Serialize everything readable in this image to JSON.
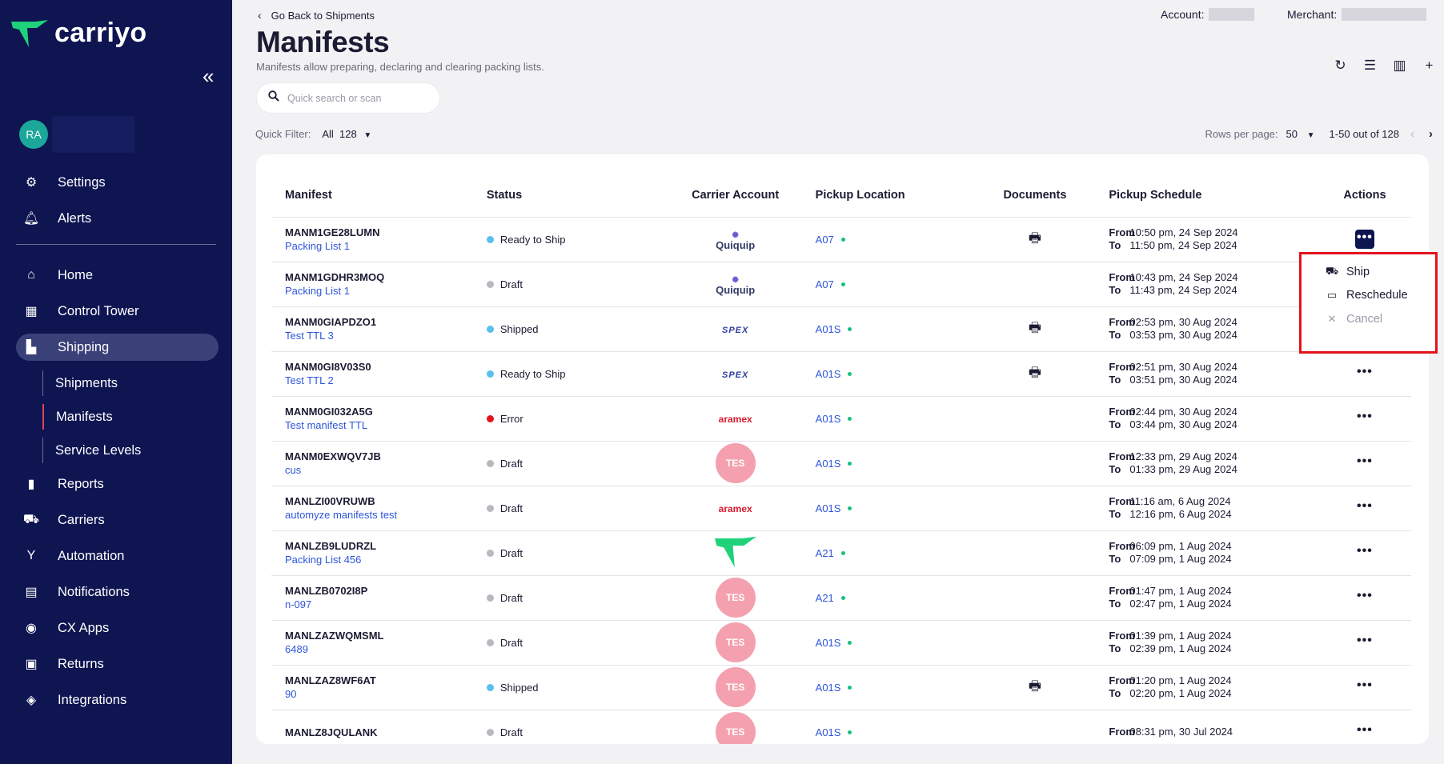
{
  "sidebar": {
    "logo_text": "carriyo",
    "avatar_initials": "RA",
    "main_items": [
      {
        "label": "Settings",
        "icon": "gear-icon"
      },
      {
        "label": "Alerts",
        "icon": "bell-icon"
      }
    ],
    "nav_items": [
      {
        "label": "Home",
        "icon": "home-icon"
      },
      {
        "label": "Control Tower",
        "icon": "dashboard-icon"
      },
      {
        "label": "Shipping",
        "icon": "boxes-icon"
      },
      {
        "label": "Reports",
        "icon": "bar-chart-icon"
      },
      {
        "label": "Carriers",
        "icon": "truck-icon"
      },
      {
        "label": "Automation",
        "icon": "fork-icon"
      },
      {
        "label": "Notifications",
        "icon": "chat-icon"
      },
      {
        "label": "CX Apps",
        "icon": "palette-icon"
      },
      {
        "label": "Returns",
        "icon": "return-box-icon"
      },
      {
        "label": "Integrations",
        "icon": "layers-icon"
      }
    ],
    "sub_items": [
      {
        "label": "Shipments"
      },
      {
        "label": "Manifests"
      },
      {
        "label": "Service Levels"
      }
    ],
    "active_nav": "Shipping",
    "active_sub": "Manifests"
  },
  "header": {
    "back_label": "Go Back to Shipments",
    "account_label": "Account:",
    "merchant_label": "Merchant:",
    "title": "Manifests",
    "description": "Manifests allow preparing, declaring and clearing packing lists."
  },
  "search": {
    "placeholder": "Quick search or scan"
  },
  "quick_filter": {
    "label": "Quick Filter:",
    "value": "All",
    "count": "128"
  },
  "pagination": {
    "rows_label": "Rows per page:",
    "rows_value": "50",
    "range": "1-50 out of 128"
  },
  "table": {
    "columns": [
      "Manifest",
      "Status",
      "Carrier Account",
      "Pickup Location",
      "Documents",
      "Pickup Schedule",
      "Actions"
    ],
    "from_label": "From",
    "to_label": "To",
    "rows": [
      {
        "id": "MANM1GE28LUMN",
        "list": "Packing List 1",
        "status": "Ready to Ship",
        "carrier": "Quiquip",
        "location": "A07",
        "doc": true,
        "from": "10:50 pm, 24 Sep 2024",
        "to": "11:50 pm, 24 Sep 2024"
      },
      {
        "id": "MANM1GDHR3MOQ",
        "list": "Packing List 1",
        "status": "Draft",
        "carrier": "Quiquip",
        "location": "A07",
        "doc": false,
        "from": "10:43 pm, 24 Sep 2024",
        "to": "11:43 pm, 24 Sep 2024"
      },
      {
        "id": "MANM0GIAPDZO1",
        "list": "Test TTL 3",
        "status": "Shipped",
        "carrier": "SPEX",
        "location": "A01S",
        "doc": true,
        "from": "02:53 pm, 30 Aug 2024",
        "to": "03:53 pm, 30 Aug 2024"
      },
      {
        "id": "MANM0GI8V03S0",
        "list": "Test TTL 2",
        "status": "Ready to Ship",
        "carrier": "SPEX",
        "location": "A01S",
        "doc": true,
        "from": "02:51 pm, 30 Aug 2024",
        "to": "03:51 pm, 30 Aug 2024"
      },
      {
        "id": "MANM0GI032A5G",
        "list": "Test manifest TTL",
        "status": "Error",
        "carrier": "aramex",
        "location": "A01S",
        "doc": false,
        "from": "02:44 pm, 30 Aug 2024",
        "to": "03:44 pm, 30 Aug 2024"
      },
      {
        "id": "MANM0EXWQV7JB",
        "list": "cus",
        "status": "Draft",
        "carrier": "TES",
        "location": "A01S",
        "doc": false,
        "from": "12:33 pm, 29 Aug 2024",
        "to": "01:33 pm, 29 Aug 2024"
      },
      {
        "id": "MANLZI00VRUWB",
        "list": "automyze manifests test",
        "status": "Draft",
        "carrier": "aramex",
        "location": "A01S",
        "doc": false,
        "from": "11:16 am, 6 Aug 2024",
        "to": "12:16 pm, 6 Aug 2024"
      },
      {
        "id": "MANLZB9LUDRZL",
        "list": "Packing List 456",
        "status": "Draft",
        "carrier": "carriyo",
        "location": "A21",
        "doc": false,
        "from": "06:09 pm, 1 Aug 2024",
        "to": "07:09 pm, 1 Aug 2024"
      },
      {
        "id": "MANLZB0702I8P",
        "list": "n-097",
        "status": "Draft",
        "carrier": "TES",
        "location": "A21",
        "doc": false,
        "from": "01:47 pm, 1 Aug 2024",
        "to": "02:47 pm, 1 Aug 2024"
      },
      {
        "id": "MANLZAZWQMSML",
        "list": "6489",
        "status": "Draft",
        "carrier": "TES",
        "location": "A01S",
        "doc": false,
        "from": "01:39 pm, 1 Aug 2024",
        "to": "02:39 pm, 1 Aug 2024"
      },
      {
        "id": "MANLZAZ8WF6AT",
        "list": "90",
        "status": "Shipped",
        "carrier": "TES",
        "location": "A01S",
        "doc": true,
        "from": "01:20 pm, 1 Aug 2024",
        "to": "02:20 pm, 1 Aug 2024"
      },
      {
        "id": "MANLZ8JQULANK",
        "list": "",
        "status": "Draft",
        "carrier": "TES",
        "location": "A01S",
        "doc": false,
        "from": "08:31 pm, 30 Jul 2024",
        "to": ""
      }
    ]
  },
  "action_menu": {
    "items": [
      {
        "label": "Ship",
        "icon": "truck-icon",
        "disabled": false
      },
      {
        "label": "Reschedule",
        "icon": "calendar-icon",
        "disabled": false
      },
      {
        "label": "Cancel",
        "icon": "close-icon",
        "disabled": true
      }
    ]
  },
  "colors": {
    "sidebar_bg": "#0e1551",
    "accent_blue": "#2e56d9",
    "status_ready": "#5bc0eb",
    "status_draft": "#b8b8c0",
    "status_error": "#e3141c",
    "highlight_box": "#e3141c"
  }
}
